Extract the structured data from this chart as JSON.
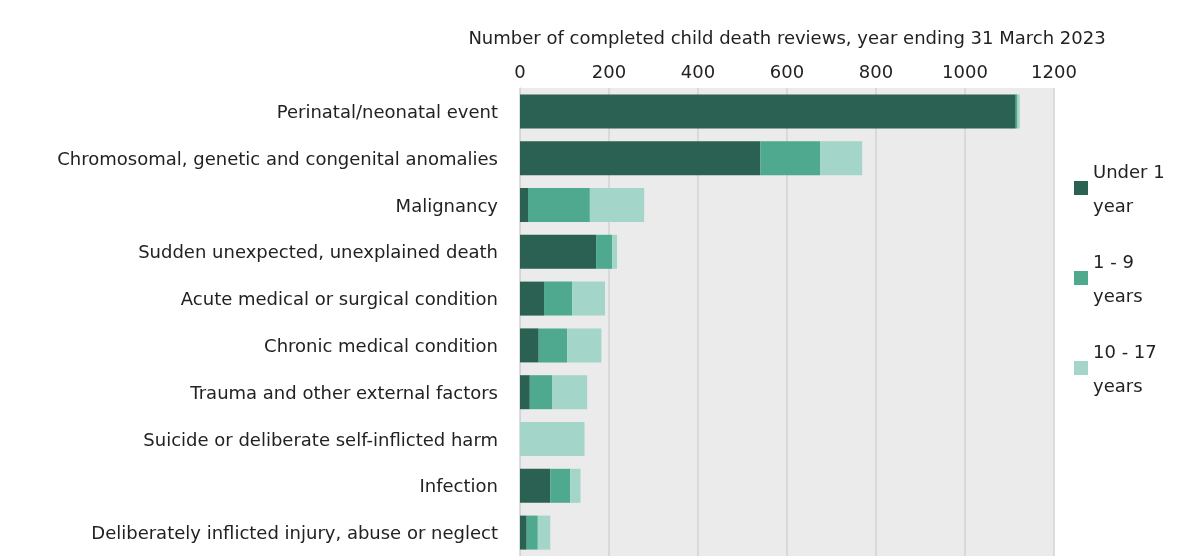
{
  "chart_data": {
    "type": "bar",
    "orientation": "horizontal",
    "stacked": true,
    "xlabel": "Number of completed child death reviews, year ending 31 March 2023",
    "categories": [
      "Perinatal/neonatal event",
      "Chromosomal, genetic and congenital anomalies",
      "Malignancy",
      "Sudden unexpected, unexplained death",
      "Acute medical or surgical condition",
      "Chronic medical condition",
      "Trauma and other external factors",
      "Suicide or deliberate self-inflicted harm",
      "Infection",
      "Deliberately inflicted injury, abuse or neglect"
    ],
    "series": [
      {
        "name": "Under 1 year",
        "color": "#2a6152",
        "values": [
          1114,
          540,
          18,
          171,
          54,
          42,
          22,
          0,
          68,
          15
        ]
      },
      {
        "name": "1 - 9 years",
        "color": "#4ea98e",
        "values": [
          4,
          135,
          139,
          36,
          63,
          64,
          50,
          0,
          45,
          25
        ]
      },
      {
        "name": "10 - 17 years",
        "color": "#a3d6c8",
        "values": [
          5,
          94,
          122,
          11,
          74,
          77,
          79,
          145,
          23,
          28
        ]
      }
    ],
    "xlim": [
      0,
      1200
    ],
    "xticks": [
      0,
      200,
      400,
      600,
      800,
      1000,
      1200
    ],
    "grid": "x",
    "legend": "right"
  }
}
